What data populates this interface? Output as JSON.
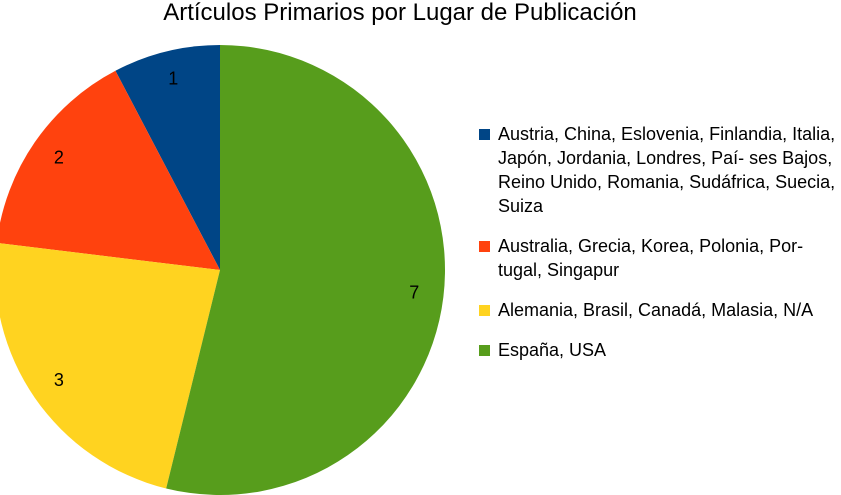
{
  "chart_data": {
    "type": "pie",
    "title": "Artículos Primarios por Lugar de Publicación",
    "slices": [
      {
        "name": "Austria, China, Eslovenia, Finlandia, Italia, Japón, Jordania, Londres, Paí- ses Bajos, Reino Unido, Romania, Sudáfrica, Suecia, Suiza",
        "value": 1,
        "label": "1",
        "color": "#004586"
      },
      {
        "name": "Australia, Grecia, Korea, Polonia, Por- tugal, Singapur",
        "value": 2,
        "label": "2",
        "color": "#ff420e"
      },
      {
        "name": "Alemania, Brasil, Canadá, Malasia, N/A",
        "value": 3,
        "label": "3",
        "color": "#ffd320"
      },
      {
        "name": "España, USA",
        "value": 7,
        "label": "7",
        "color": "#579d1c"
      }
    ],
    "legend_position": "right"
  }
}
